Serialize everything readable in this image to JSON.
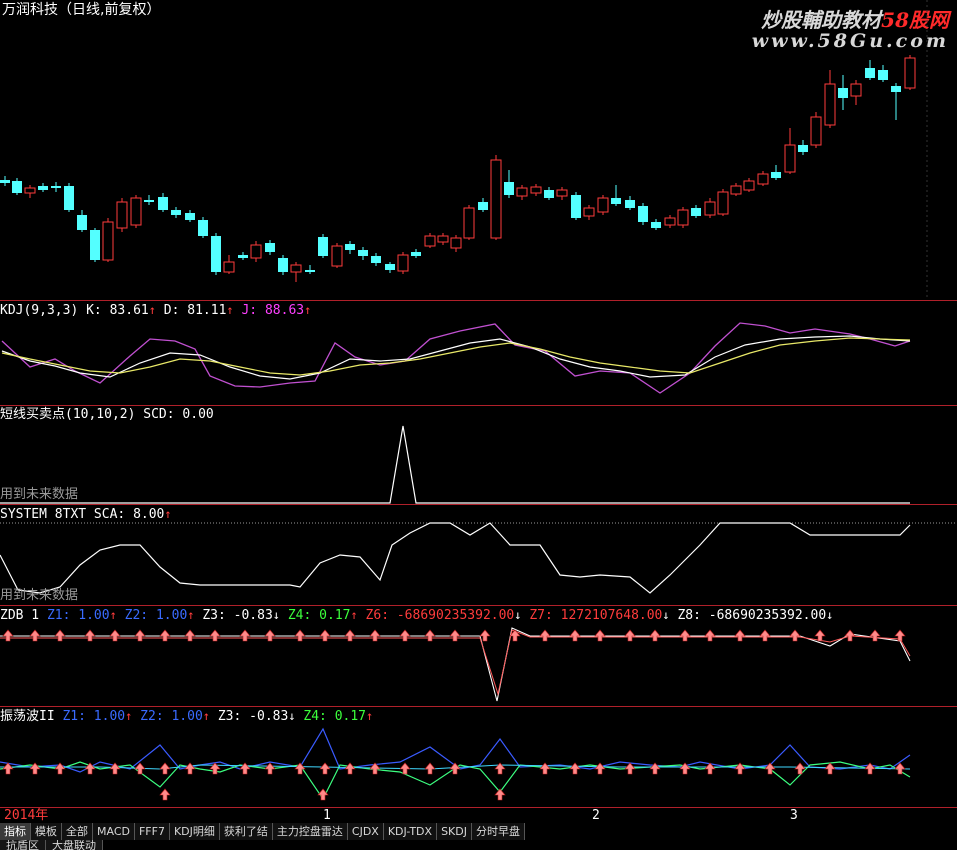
{
  "title": "万润科技（日线,前复权）",
  "watermark": {
    "brand_part1": "炒股輔助教材",
    "brand_part2": "58股网",
    "url": "www.58Gu.com"
  },
  "kdj": {
    "name": "KDJ(9,3,3)",
    "k_label": "K:",
    "k": "83.61",
    "d_label": "D:",
    "d": "81.11",
    "j_label": "J:",
    "j": "88.63"
  },
  "scd": {
    "name": "短线买卖点(10,10,2)",
    "label": "SCD:",
    "value": "0.00",
    "future_note": "用到未来数据"
  },
  "system": {
    "name": "SYSTEM 8TXT",
    "label": "SCA:",
    "value": "8.00",
    "future_note": "用到未来数据"
  },
  "zdb": {
    "name": "ZDB 1",
    "z1_label": "Z1:",
    "z1": "1.00",
    "z2_label": "Z2:",
    "z2": "1.00",
    "z3_label": "Z3:",
    "z3": "-0.83",
    "z4_label": "Z4:",
    "z4": "0.17",
    "z6_label": "Z6:",
    "z6": "-68690235392.00",
    "z7_label": "Z7:",
    "z7": "1272107648.00",
    "z8_label": "Z8:",
    "z8": "-68690235392.00"
  },
  "oscillation": {
    "name": "振荡波II",
    "z1_label": "Z1:",
    "z1": "1.00",
    "z2_label": "Z2:",
    "z2": "1.00",
    "z3_label": "Z3:",
    "z3": "-0.83",
    "z4_label": "Z4:",
    "z4": "0.17"
  },
  "timeline": {
    "year": "2014年",
    "m1": "1",
    "m2": "2",
    "m3": "3"
  },
  "tabs": [
    "指标",
    "模板",
    "全部",
    "MACD",
    "FFF7",
    "KDJ明细",
    "获利了结",
    "主力控盘雷达",
    "CJDX",
    "KDJ-TDX",
    "SKDJ",
    "分时早盘"
  ],
  "tabs2": [
    "抗盾区",
    "大盘联动"
  ],
  "colors": {
    "up": "#ff3c3c",
    "down": "#54ffff",
    "separator": "#b0202a"
  }
}
